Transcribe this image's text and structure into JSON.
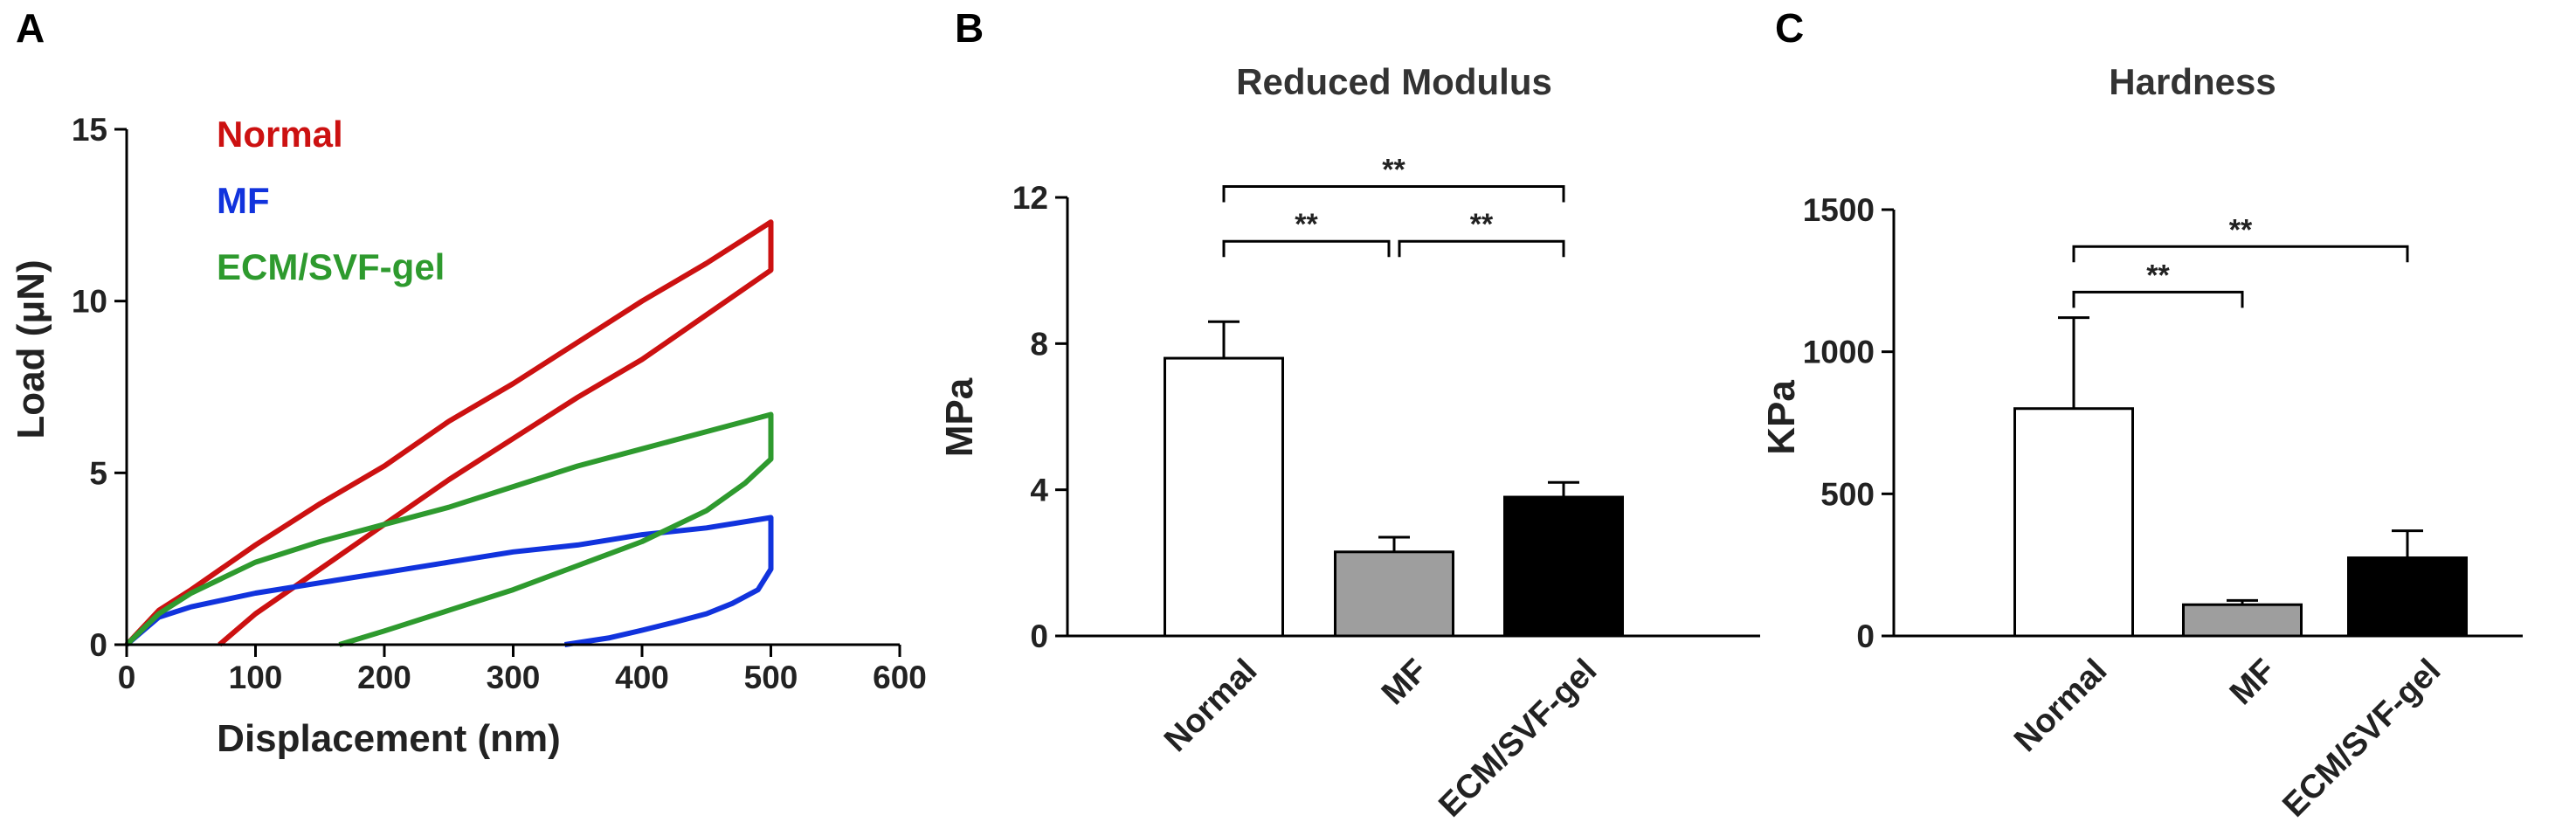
{
  "panels": [
    {
      "letter": "A",
      "chart_data": {
        "type": "line",
        "title": "",
        "xlabel": "Displacement (nm)",
        "ylabel": "Load (μN)",
        "xlim": [
          0,
          600
        ],
        "ylim": [
          0,
          15
        ],
        "xticks": [
          0,
          100,
          200,
          300,
          400,
          500,
          600
        ],
        "yticks": [
          0,
          5,
          10,
          15
        ],
        "legend_position": "top-left",
        "series": [
          {
            "name": "Normal",
            "color": "#cc1111",
            "x": [
              0,
              25,
              50,
              100,
              150,
              200,
              250,
              300,
              350,
              400,
              450,
              500,
              500,
              450,
              400,
              350,
              300,
              250,
              200,
              150,
              100,
              72
            ],
            "y": [
              0,
              1.0,
              1.6,
              2.9,
              4.1,
              5.2,
              6.5,
              7.6,
              8.8,
              10.0,
              11.1,
              12.3,
              10.9,
              9.6,
              8.3,
              7.2,
              6.0,
              4.8,
              3.5,
              2.2,
              0.9,
              0
            ]
          },
          {
            "name": "MF",
            "color": "#1133dd",
            "x": [
              0,
              25,
              50,
              100,
              150,
              200,
              250,
              300,
              350,
              400,
              450,
              500,
              500,
              490,
              470,
              450,
              425,
              400,
              375,
              340
            ],
            "y": [
              0,
              0.8,
              1.1,
              1.5,
              1.8,
              2.1,
              2.4,
              2.7,
              2.9,
              3.2,
              3.4,
              3.7,
              2.2,
              1.6,
              1.2,
              0.9,
              0.65,
              0.42,
              0.2,
              0
            ]
          },
          {
            "name": "ECM/SVF-gel",
            "color": "#2e9a2e",
            "x": [
              0,
              25,
              50,
              100,
              150,
              200,
              250,
              300,
              350,
              400,
              450,
              500,
              500,
              480,
              450,
              400,
              350,
              300,
              250,
              200,
              165
            ],
            "y": [
              0,
              0.9,
              1.5,
              2.4,
              3.0,
              3.5,
              4.0,
              4.6,
              5.2,
              5.7,
              6.2,
              6.7,
              5.4,
              4.7,
              3.9,
              3.0,
              2.3,
              1.6,
              1.0,
              0.4,
              0
            ]
          }
        ]
      }
    },
    {
      "letter": "B",
      "chart_data": {
        "type": "bar",
        "title": "Reduced Modulus",
        "xlabel": "",
        "ylabel": "MPa",
        "categories": [
          "Normal",
          "MF",
          "ECM/SVF-gel"
        ],
        "values": [
          7.6,
          2.3,
          3.8
        ],
        "errors": [
          1.0,
          0.4,
          0.4
        ],
        "colors": [
          "#ffffff",
          "#9e9e9e",
          "#000000"
        ],
        "ylim": [
          0,
          12
        ],
        "yticks": [
          0,
          4,
          8,
          12
        ],
        "significance": [
          {
            "from": 0,
            "to": 1,
            "label": "**",
            "level": 10.8
          },
          {
            "from": 1,
            "to": 2,
            "label": "**",
            "level": 10.8
          },
          {
            "from": 0,
            "to": 2,
            "label": "**",
            "level": 12.3
          }
        ]
      }
    },
    {
      "letter": "C",
      "chart_data": {
        "type": "bar",
        "title": "Hardness",
        "xlabel": "",
        "ylabel": "KPa",
        "categories": [
          "Normal",
          "MF",
          "ECM/SVF-gel"
        ],
        "values": [
          800,
          110,
          275
        ],
        "errors": [
          320,
          15,
          95
        ],
        "colors": [
          "#ffffff",
          "#9e9e9e",
          "#000000"
        ],
        "ylim": [
          0,
          1500
        ],
        "yticks": [
          0,
          500,
          1000,
          1500
        ],
        "significance": [
          {
            "from": 0,
            "to": 1,
            "label": "**",
            "level": 1210
          },
          {
            "from": 0,
            "to": 2,
            "label": "**",
            "level": 1370
          }
        ]
      }
    }
  ]
}
